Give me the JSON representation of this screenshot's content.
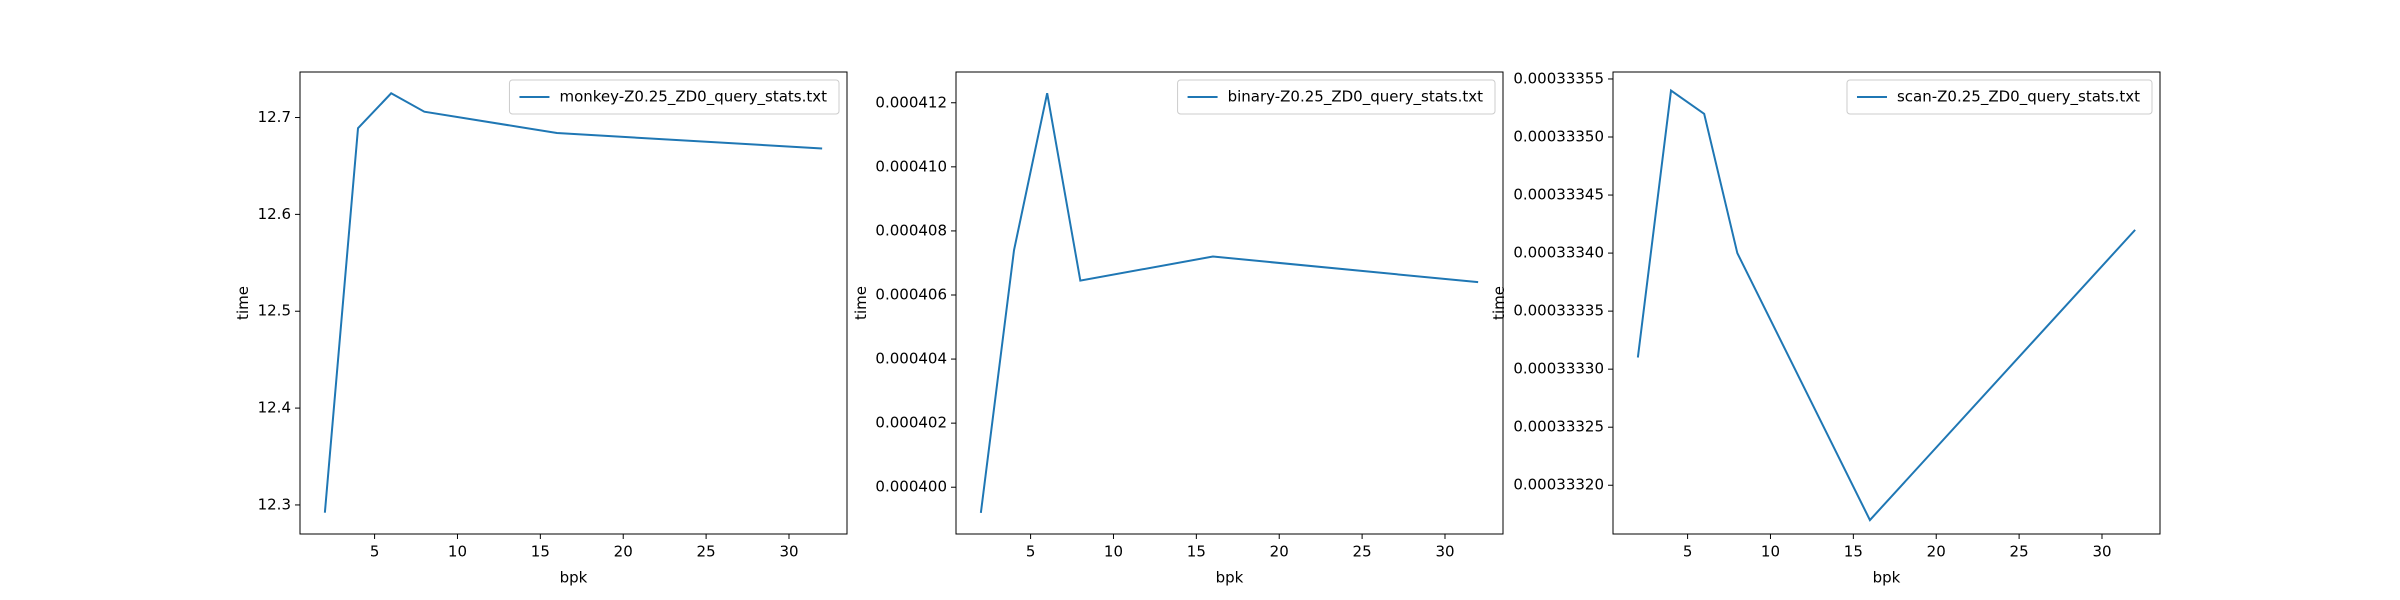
{
  "chart_data": [
    {
      "type": "line",
      "xlabel": "bpk",
      "ylabel": "time",
      "x": [
        2,
        4,
        6,
        8,
        16,
        32
      ],
      "series": [
        {
          "name": "monkey-Z0.25_ZD0_query_stats.txt",
          "color": "#1f77b4",
          "values": [
            12.292,
            12.689,
            12.725,
            12.706,
            12.684,
            12.668
          ]
        }
      ],
      "xlim": [
        0.5,
        33.5
      ],
      "ylim": [
        12.27,
        12.747
      ],
      "xticks": [
        5,
        10,
        15,
        20,
        25,
        30
      ],
      "yticks": [
        12.3,
        12.4,
        12.5,
        12.6,
        12.7
      ],
      "legend": "upper right"
    },
    {
      "type": "line",
      "xlabel": "bpk",
      "ylabel": "time",
      "x": [
        2,
        4,
        6,
        8,
        16,
        32
      ],
      "series": [
        {
          "name": "binary-Z0.25_ZD0_query_stats.txt",
          "color": "#1f77b4",
          "values": [
            0.0003992,
            0.0004074,
            0.0004123,
            0.00040645,
            0.0004072,
            0.0004064
          ]
        }
      ],
      "xlim": [
        0.5,
        33.5
      ],
      "ylim": [
        0.00039854,
        0.00041296
      ],
      "xticks": [
        5,
        10,
        15,
        20,
        25,
        30
      ],
      "yticks": [
        {
          "value": 0.0004,
          "label": "0.000400"
        },
        {
          "value": 0.000402,
          "label": "0.000402"
        },
        {
          "value": 0.000404,
          "label": "0.000404"
        },
        {
          "value": 0.000406,
          "label": "0.000406"
        },
        {
          "value": 0.000408,
          "label": "0.000408"
        },
        {
          "value": 0.00041,
          "label": "0.000410"
        },
        {
          "value": 0.000412,
          "label": "0.000412"
        }
      ],
      "legend": "upper right"
    },
    {
      "type": "line",
      "xlabel": "bpk",
      "ylabel": "time",
      "x": [
        2,
        4,
        6,
        8,
        16,
        32
      ],
      "series": [
        {
          "name": "scan-Z0.25_ZD0_query_stats.txt",
          "color": "#1f77b4",
          "values": [
            0.00033331,
            0.00033354,
            0.00033352,
            0.0003334,
            0.00033317,
            0.00033342
          ]
        }
      ],
      "xlim": [
        0.5,
        33.5
      ],
      "ylim": [
        0.000333158,
        0.000333556
      ],
      "xticks": [
        5,
        10,
        15,
        20,
        25,
        30
      ],
      "yticks": [
        {
          "value": 0.0003332,
          "label": "0.00033320"
        },
        {
          "value": 0.00033325,
          "label": "0.00033325"
        },
        {
          "value": 0.0003333,
          "label": "0.00033330"
        },
        {
          "value": 0.00033335,
          "label": "0.00033335"
        },
        {
          "value": 0.0003334,
          "label": "0.00033340"
        },
        {
          "value": 0.00033345,
          "label": "0.00033345"
        },
        {
          "value": 0.0003335,
          "label": "0.00033350"
        },
        {
          "value": 0.00033355,
          "label": "0.00033355"
        }
      ],
      "legend": "upper right"
    }
  ]
}
